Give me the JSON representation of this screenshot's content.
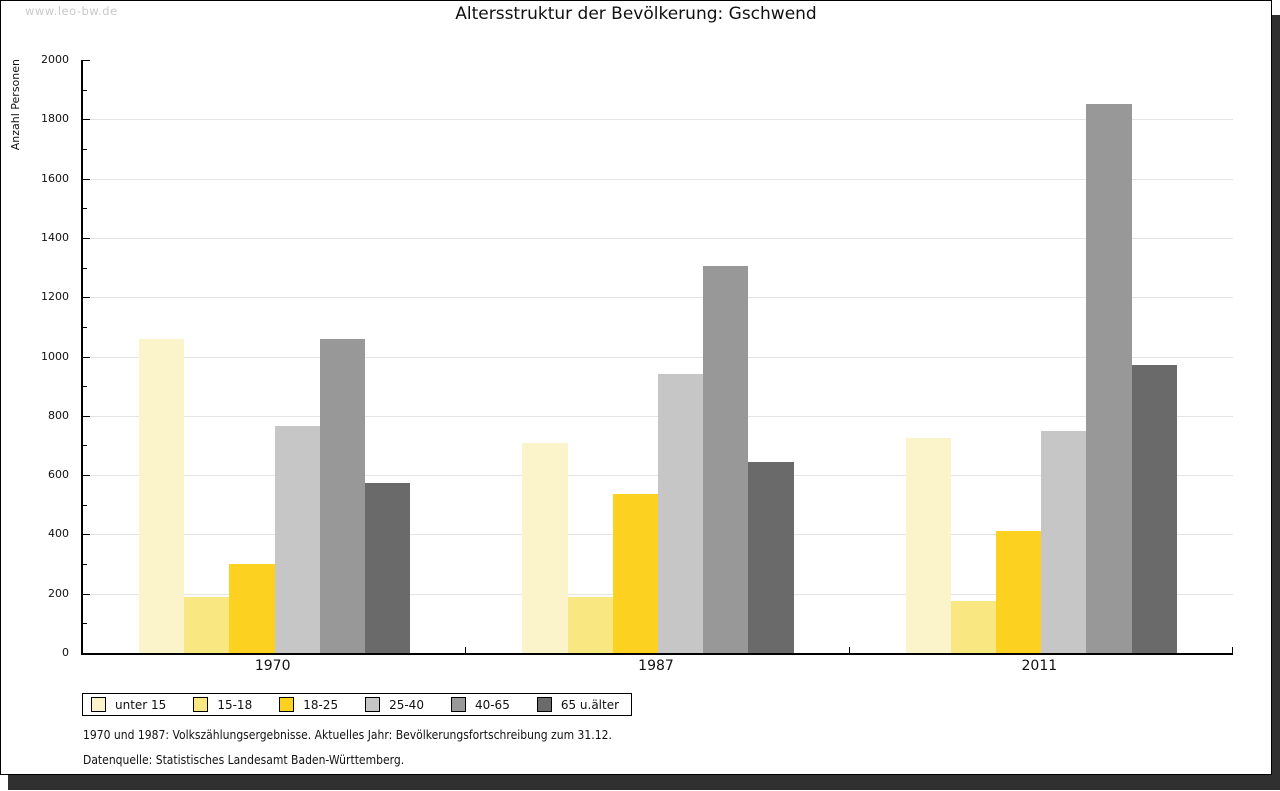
{
  "watermark": "www.leo-bw.de",
  "title": "Altersstruktur der Bevölkerung: Gschwend",
  "footer": {
    "line1": "1970 und 1987: Volkszählungsergebnisse. Aktuelles Jahr: Bevölkerungsfortschreibung zum 31.12.",
    "line2": "Datenquelle: Statistisches Landesamt Baden-Württemberg."
  },
  "chart_data": {
    "type": "bar",
    "title": "Altersstruktur der Bevölkerung: Gschwend",
    "xlabel": "",
    "ylabel": "Anzahl Personen",
    "ylim": [
      0,
      2000
    ],
    "yticks": [
      0,
      200,
      400,
      600,
      800,
      1000,
      1200,
      1400,
      1600,
      1800,
      2000
    ],
    "minor_tick_step": 100,
    "grid": "horizontal",
    "legend_position": "bottom-left",
    "categories": [
      "1970",
      "1987",
      "2011"
    ],
    "series": [
      {
        "name": "unter 15",
        "color": "#FBF4CA",
        "values": [
          1060,
          710,
          725
        ]
      },
      {
        "name": "15-18",
        "color": "#F9E781",
        "values": [
          190,
          190,
          175
        ]
      },
      {
        "name": "18-25",
        "color": "#FCD11F",
        "values": [
          300,
          535,
          410
        ]
      },
      {
        "name": "25-40",
        "color": "#C6C6C6",
        "values": [
          765,
          940,
          750
        ]
      },
      {
        "name": "40-65",
        "color": "#989898",
        "values": [
          1060,
          1305,
          1850
        ]
      },
      {
        "name": "65 u.älter",
        "color": "#6A6A6A",
        "values": [
          575,
          645,
          970
        ]
      }
    ],
    "colors": {
      "gridline": "#e4e4e4",
      "axis": "#000000",
      "watermark": "#c9c9c9"
    }
  }
}
